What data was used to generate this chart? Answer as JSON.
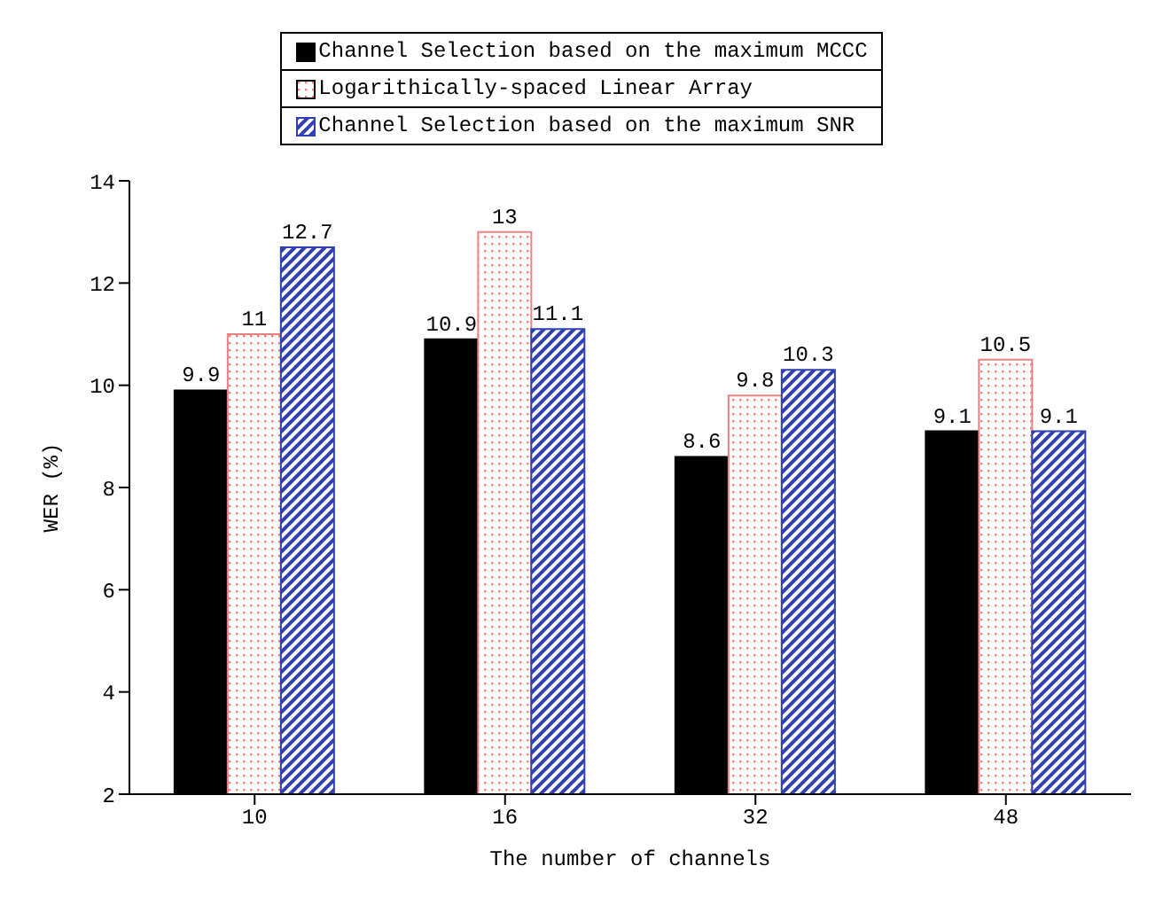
{
  "chart_data": {
    "type": "bar",
    "xlabel": "The number of channels",
    "ylabel": "WER (%)",
    "categories": [
      "10",
      "16",
      "32",
      "48"
    ],
    "series": [
      {
        "name": "Channel Selection based on the maximum MCCC",
        "color": "#000000",
        "values": [
          9.9,
          10.9,
          8.6,
          9.1
        ]
      },
      {
        "name": "Logarithically-spaced Linear Array",
        "color": "#f08080",
        "values": [
          11,
          13,
          9.8,
          10.5
        ]
      },
      {
        "name": "Channel Selection based on the maximum SNR",
        "color": "#3040b0",
        "values": [
          12.7,
          11.1,
          10.3,
          9.1
        ]
      }
    ],
    "ylim": [
      2,
      14
    ],
    "yticks": [
      2,
      4,
      6,
      8,
      10,
      12,
      14
    ],
    "grid": false,
    "legend": "top",
    "data_labels": true
  }
}
